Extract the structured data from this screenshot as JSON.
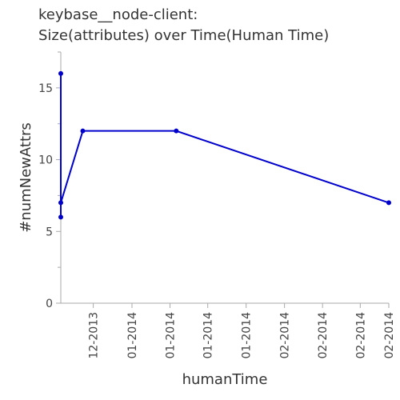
{
  "chart_data": {
    "type": "line",
    "title": [
      "keybase__node-client:",
      "Size(attributes) over Time(Human Time)"
    ],
    "xlabel": "humanTime",
    "ylabel": "#numNewAttrs",
    "ylim": [
      0,
      17.5
    ],
    "y_ticks": [
      0,
      5,
      10,
      15
    ],
    "x_tick_labels": [
      "12-2013",
      "01-2014",
      "01-2014",
      "01-2014",
      "01-2014",
      "02-2014",
      "02-2014",
      "02-2014",
      "02-2014"
    ],
    "x_tick_positions": [
      0.099,
      0.217,
      0.333,
      0.448,
      0.565,
      0.682,
      0.798,
      0.913,
      1.0
    ],
    "series": [
      {
        "color": "#0000cc",
        "points": [
          {
            "x": 0.0,
            "y": 6
          },
          {
            "x": 0.0,
            "y": 16
          },
          {
            "x": 0.0,
            "y": 7
          },
          {
            "x": 0.067,
            "y": 12
          },
          {
            "x": 0.352,
            "y": 12
          },
          {
            "x": 1.0,
            "y": 7
          }
        ]
      }
    ]
  }
}
